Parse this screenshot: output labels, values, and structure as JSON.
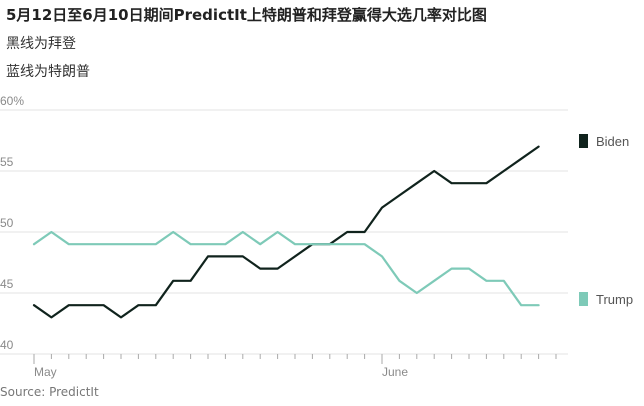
{
  "chart_data": {
    "type": "line",
    "title": "5月12日至6月10日期间PredictIt上特朗普和拜登赢得大选几率对比图",
    "subtitles": [
      "黑线为拜登",
      "蓝线为特朗普"
    ],
    "source": "Source: PredictIt",
    "y_ticks": [
      {
        "value": 60,
        "label": "60%"
      },
      {
        "value": 55,
        "label": "55"
      },
      {
        "value": 50,
        "label": "50"
      },
      {
        "value": 45,
        "label": "45"
      },
      {
        "value": 40,
        "label": "40"
      }
    ],
    "ylim": [
      40,
      60
    ],
    "xlim": [
      0,
      30
    ],
    "x_labels": [
      {
        "x": 0,
        "label": "May"
      },
      {
        "x": 20,
        "label": "June"
      }
    ],
    "legend_placement": "right",
    "grid": true,
    "series": [
      {
        "name": "Biden",
        "color": "#10231d",
        "values": [
          [
            0,
            44
          ],
          [
            1,
            43
          ],
          [
            2,
            44
          ],
          [
            4,
            44
          ],
          [
            5,
            43
          ],
          [
            6,
            44
          ],
          [
            7,
            44
          ],
          [
            8,
            46
          ],
          [
            9,
            46
          ],
          [
            10,
            48
          ],
          [
            12,
            48
          ],
          [
            13,
            47
          ],
          [
            14,
            47
          ],
          [
            16,
            49
          ],
          [
            17,
            49
          ],
          [
            18,
            50
          ],
          [
            19,
            50
          ],
          [
            20,
            52
          ],
          [
            21,
            53
          ],
          [
            22,
            54
          ],
          [
            23,
            55
          ],
          [
            24,
            54
          ],
          [
            26,
            54
          ],
          [
            27,
            55
          ],
          [
            28,
            56
          ],
          [
            29,
            57
          ]
        ]
      },
      {
        "name": "Trump",
        "color": "#7ecab8",
        "values": [
          [
            0,
            49
          ],
          [
            1,
            50
          ],
          [
            2,
            49
          ],
          [
            7,
            49
          ],
          [
            8,
            50
          ],
          [
            9,
            49
          ],
          [
            11,
            49
          ],
          [
            12,
            50
          ],
          [
            13,
            49
          ],
          [
            14,
            50
          ],
          [
            15,
            49
          ],
          [
            19,
            49
          ],
          [
            20,
            48
          ],
          [
            21,
            46
          ],
          [
            22,
            45
          ],
          [
            23,
            46
          ],
          [
            24,
            47
          ],
          [
            25,
            47
          ],
          [
            26,
            46
          ],
          [
            27,
            46
          ],
          [
            28,
            44
          ],
          [
            29,
            44
          ]
        ]
      }
    ]
  }
}
